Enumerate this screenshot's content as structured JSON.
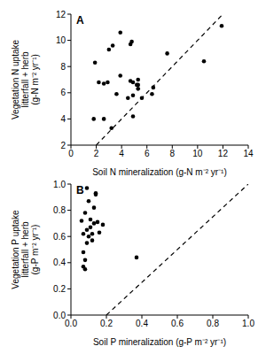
{
  "chart_data": [
    {
      "type": "scatter",
      "title": "A",
      "xlabel": "Soil N mineralization (g-N m⁻² yr⁻¹)",
      "ylabel": [
        "Vegetation N uptake",
        "litterfall + herb",
        "(g-N m⁻² yr⁻¹)"
      ],
      "xlim": [
        0,
        14
      ],
      "xticks": [
        0,
        2,
        4,
        6,
        8,
        10,
        12,
        14
      ],
      "ylim": [
        2,
        12
      ],
      "yticks": [
        2,
        4,
        6,
        8,
        10,
        12
      ],
      "series": [
        {
          "type": "scatter",
          "color": "#000000",
          "marker": "circle",
          "x": [
            1.8,
            1.9,
            2.2,
            2.6,
            2.9,
            3.0,
            3.3,
            3.2,
            2.6,
            3.6,
            3.9,
            3.9,
            4.7,
            4.8,
            4.5,
            4.7,
            4.9,
            4.9,
            5.2,
            5.3,
            5.3,
            5.6,
            5.3,
            6.4,
            6.5,
            7.6,
            10.5,
            11.9,
            4.9
          ],
          "y": [
            4.0,
            8.3,
            6.8,
            6.7,
            6.8,
            9.3,
            9.6,
            3.3,
            4.0,
            5.9,
            10.6,
            7.3,
            9.7,
            9.9,
            5.6,
            6.9,
            6.8,
            4.2,
            6.6,
            6.6,
            6.3,
            5.6,
            7.0,
            5.9,
            6.4,
            9.0,
            8.4,
            11.1,
            5.8
          ]
        },
        {
          "type": "line",
          "color": "#000000",
          "line_style": "dashed",
          "x": [
            2,
            12
          ],
          "y": [
            2,
            12
          ]
        }
      ]
    },
    {
      "type": "scatter",
      "title": "B",
      "xlabel": "Soil P mineralization (g-P m⁻² yr⁻¹)",
      "ylabel": [
        "Vegetation P uptake",
        "litterfall + herb",
        "(g-P m⁻² yr⁻¹)"
      ],
      "xlim": [
        0,
        1
      ],
      "xticks": [
        {
          "value": 0,
          "label": "0.0"
        },
        0.2,
        0.4,
        0.6,
        0.8,
        {
          "value": 1,
          "label": "1.0"
        }
      ],
      "ylim": [
        0,
        1
      ],
      "yticks": [
        {
          "value": 0,
          "label": "0.0"
        },
        0.2,
        0.4,
        0.6,
        0.8,
        {
          "value": 1,
          "label": "1.0"
        }
      ],
      "series": [
        {
          "type": "scatter",
          "color": "#000000",
          "marker": "circle",
          "x": [
            0.06,
            0.07,
            0.07,
            0.08,
            0.08,
            0.08,
            0.09,
            0.09,
            0.09,
            0.1,
            0.1,
            0.11,
            0.11,
            0.12,
            0.12,
            0.13,
            0.13,
            0.14,
            0.14,
            0.15,
            0.16,
            0.18,
            0.07,
            0.37
          ],
          "y": [
            0.72,
            0.62,
            0.48,
            0.78,
            0.42,
            0.35,
            0.97,
            0.65,
            0.55,
            0.87,
            0.6,
            0.73,
            0.67,
            0.62,
            0.57,
            0.82,
            0.7,
            0.93,
            0.92,
            0.71,
            0.63,
            0.69,
            0.37,
            0.44
          ]
        },
        {
          "type": "line",
          "color": "#000000",
          "line_style": "dashed",
          "x": [
            0.2,
            1
          ],
          "y": [
            0,
            1
          ]
        }
      ]
    }
  ]
}
